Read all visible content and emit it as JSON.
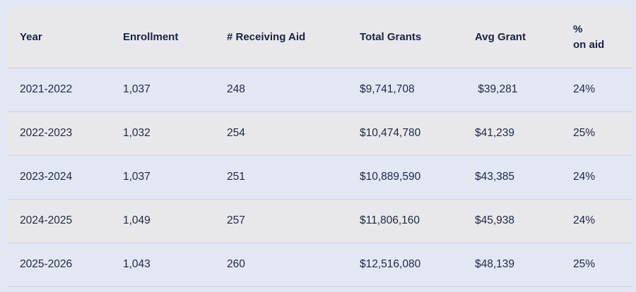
{
  "headers": {
    "year": "Year",
    "enrollment": "Enrollment",
    "receiving_aid": "# Receiving Aid",
    "total_grants": "Total Grants",
    "avg_grant": "Avg Grant",
    "pct_line1": "%",
    "pct_line2": "on aid"
  },
  "rows": [
    {
      "year": "2021-2022",
      "enrollment": "1,037",
      "receiving_aid": "248",
      "total_grants": "$9,741,708",
      "avg_grant": " $39,281",
      "pct": "24%"
    },
    {
      "year": "2022-2023",
      "enrollment": "1,032",
      "receiving_aid": "254",
      "total_grants": "$10,474,780",
      "avg_grant": "$41,239",
      "pct": "25%"
    },
    {
      "year": "2023-2024",
      "enrollment": "1,037",
      "receiving_aid": "251",
      "total_grants": "$10,889,590",
      "avg_grant": "$43,385",
      "pct": "24%"
    },
    {
      "year": "2024-2025",
      "enrollment": "1,049",
      "receiving_aid": "257",
      "total_grants": "$11,806,160",
      "avg_grant": "$45,938",
      "pct": "24%"
    },
    {
      "year": "2025-2026",
      "enrollment": "1,043",
      "receiving_aid": "260",
      "total_grants": "$12,516,080",
      "avg_grant": "$48,139",
      "pct": "25%"
    }
  ]
}
